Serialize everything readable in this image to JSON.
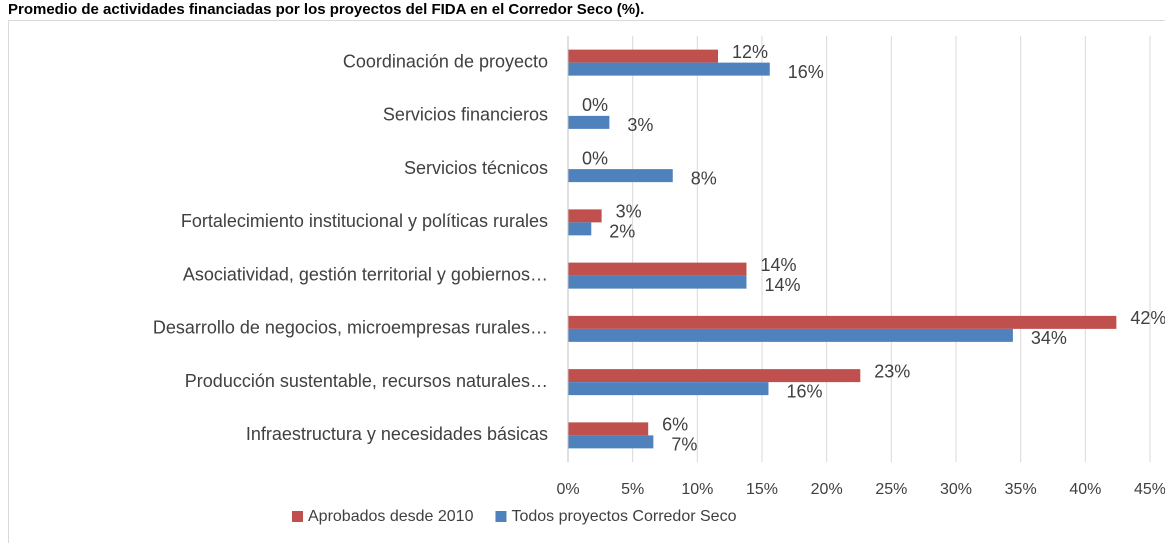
{
  "chart_data": {
    "type": "barh",
    "title": "Promedio de actividades financiadas por los proyectos del FIDA en el Corredor Seco (%).",
    "categories": [
      "Coordinación de proyecto",
      "Servicios financieros",
      "Servicios técnicos",
      "Fortalecimiento institucional y políticas rurales",
      "Asociatividad, gestión territorial y gobiernos…",
      "Desarrollo de negocios, microempresas rurales…",
      "Producción sustentable, recursos naturales…",
      "Infraestructura y necesidades básicas"
    ],
    "series": [
      {
        "name": "Aprobados desde 2010",
        "color": "#c0504d",
        "values": [
          11.6,
          0,
          0,
          2.6,
          13.8,
          42.4,
          22.6,
          6.2
        ],
        "value_labels": [
          "12%",
          "0%",
          "0%",
          "3%",
          "14%",
          "42%",
          "23%",
          "6%"
        ]
      },
      {
        "name": "Todos proyectos Corredor Seco",
        "color": "#4f81bd",
        "values": [
          15.6,
          3.2,
          8.1,
          1.8,
          13.8,
          34.4,
          15.5,
          6.6
        ],
        "value_labels": [
          "16%",
          "3%",
          "8%",
          "2%",
          "14%",
          "34%",
          "16%",
          "7%"
        ]
      }
    ],
    "xlim": [
      0,
      45
    ],
    "xticks": [
      {
        "value": 0,
        "label": "0%"
      },
      {
        "value": 5,
        "label": "5%"
      },
      {
        "value": 10,
        "label": "10%"
      },
      {
        "value": 15,
        "label": "15%"
      },
      {
        "value": 20,
        "label": "20%"
      },
      {
        "value": 25,
        "label": "25%"
      },
      {
        "value": 30,
        "label": "30%"
      },
      {
        "value": 35,
        "label": "35%"
      },
      {
        "value": 40,
        "label": "40%"
      },
      {
        "value": 45,
        "label": "45%"
      }
    ],
    "grid": true,
    "legend": "bottom"
  }
}
